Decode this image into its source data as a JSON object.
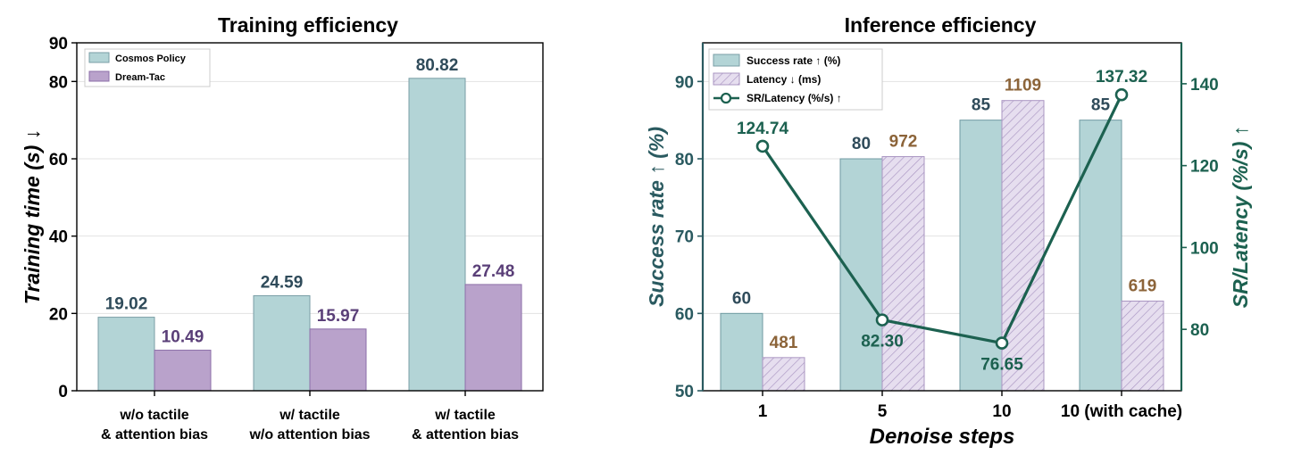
{
  "chart_data": [
    {
      "type": "bar",
      "title": "Training efficiency",
      "xlabel": "",
      "ylabel": "Training time (s) ↓",
      "ylim": [
        0,
        90
      ],
      "yticks": [
        "0",
        "20",
        "40",
        "60",
        "80",
        "90"
      ],
      "categories": [
        [
          "w/o tactile",
          "& attention bias"
        ],
        [
          "w/ tactile",
          "w/o attention bias"
        ],
        [
          "w/ tactile",
          "& attention bias"
        ]
      ],
      "series": [
        {
          "name": "Cosmos Policy",
          "values": [
            19.02,
            24.59,
            80.82
          ],
          "labels": [
            "19.02",
            "24.59",
            "80.82"
          ],
          "color": "#b3d4d6",
          "label_color": "#2f4b5a"
        },
        {
          "name": "Dream-Tac",
          "values": [
            10.49,
            15.97,
            27.48
          ],
          "labels": [
            "10.49",
            "15.97",
            "27.48"
          ],
          "color": "#b9a2cb",
          "label_color": "#5a3f78"
        }
      ],
      "legend": "top-left",
      "grid": true
    },
    {
      "type": "bar",
      "title": "Inference efficiency",
      "xlabel": "Denoise steps",
      "ylabel": "Success rate ↑ (%)",
      "y2label": "SR/Latency (%/s) ↑",
      "ylim": [
        50,
        95
      ],
      "yticks": [
        "50",
        "60",
        "70",
        "80",
        "90"
      ],
      "y2lim": [
        65,
        150
      ],
      "y2ticks": [
        "80",
        "100",
        "120",
        "140"
      ],
      "latency_ylim": [
        400,
        1250
      ],
      "categories": [
        "1",
        "5",
        "10",
        "10 (with cache)"
      ],
      "series": [
        {
          "name": "Success rate ↑ (%)",
          "values": [
            60,
            80,
            85,
            85
          ],
          "labels": [
            "60",
            "80",
            "85",
            "85"
          ],
          "color": "#b3d4d6",
          "label_color": "#2f4b5a"
        },
        {
          "name": "Latency ↓ (ms)",
          "values": [
            481,
            972,
            1109,
            619
          ],
          "labels": [
            "481",
            "972",
            "1109",
            "619"
          ],
          "color": "#e4dced",
          "label_color": "#8c6439"
        },
        {
          "name": "SR/Latency (%/s)  ↑",
          "type": "line",
          "values": [
            124.74,
            82.3,
            76.65,
            137.32
          ],
          "labels": [
            "124.74",
            "82.30",
            "76.65",
            "137.32"
          ],
          "color": "#1c6150"
        }
      ],
      "legend": "top-left",
      "grid": true
    }
  ]
}
